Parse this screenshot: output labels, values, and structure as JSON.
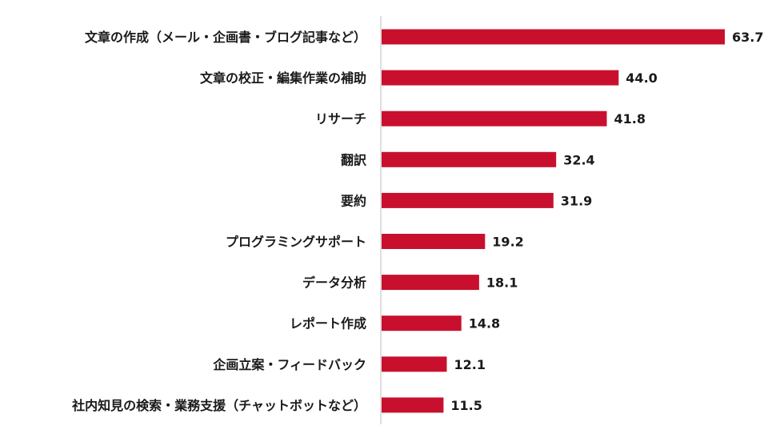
{
  "chart_data": {
    "type": "bar",
    "orientation": "horizontal",
    "categories": [
      "文章の作成（メール・企画書・ブログ記事など）",
      "文章の校正・編集作業の補助",
      "リサーチ",
      "翻訳",
      "要約",
      "プログラミングサポート",
      "データ分析",
      "レポート作成",
      "企画立案・フィードバック",
      "社内知見の検索・業務支援（チャットボットなど）"
    ],
    "values": [
      63.7,
      44.0,
      41.8,
      32.4,
      31.9,
      19.2,
      18.1,
      14.8,
      12.1,
      11.5
    ],
    "value_labels": [
      "63.7",
      "44.0",
      "41.8",
      "32.4",
      "31.9",
      "19.2",
      "18.1",
      "14.8",
      "12.1",
      "11.5"
    ],
    "xlim": [
      0,
      65
    ],
    "grid": false,
    "legend": "none",
    "bar_color": "#c8102e",
    "axis_color": "#bfbfbf"
  }
}
